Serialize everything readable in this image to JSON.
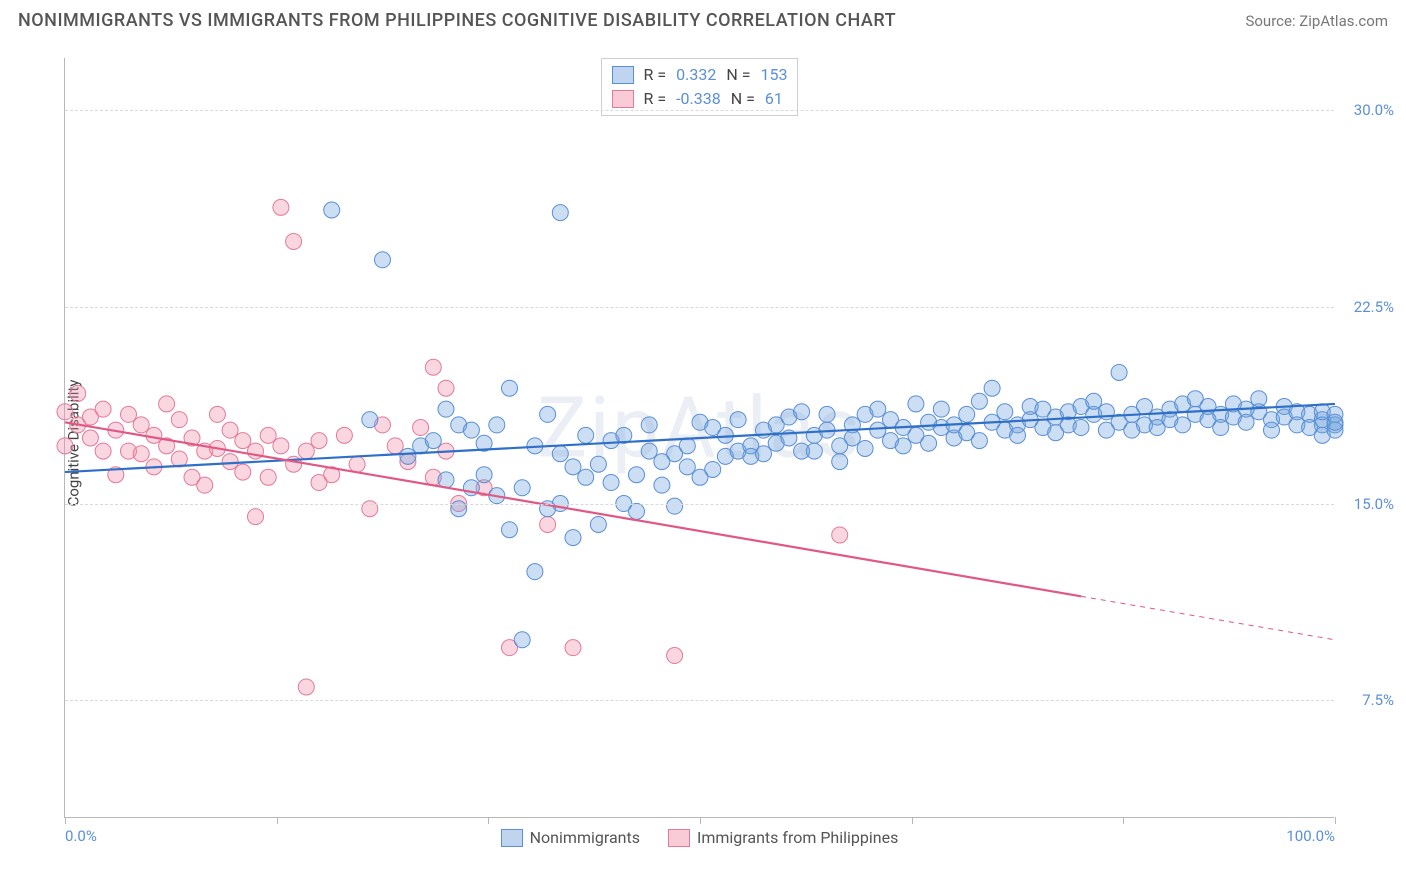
{
  "header": {
    "title": "NONIMMIGRANTS VS IMMIGRANTS FROM PHILIPPINES COGNITIVE DISABILITY CORRELATION CHART",
    "source": "Source: ZipAtlas.com"
  },
  "chart": {
    "type": "scatter",
    "watermark": "ZipAtlas",
    "ylabel": "Cognitive Disability",
    "xlim": [
      0,
      100
    ],
    "ylim": [
      3,
      32
    ],
    "background_color": "#ffffff",
    "grid_color": "#d9d9d9",
    "axis_color": "#b8b8b8",
    "ytick_labels": [
      "7.5%",
      "15.0%",
      "22.5%",
      "30.0%"
    ],
    "ytick_values": [
      7.5,
      15.0,
      22.5,
      30.0
    ],
    "xtick_values": [
      0,
      16.67,
      33.33,
      50,
      66.67,
      83.33,
      100
    ],
    "xaxis_labels": {
      "left": "0.0%",
      "right": "100.0%"
    },
    "tick_label_color": "#5a8fd6",
    "point_radius": 8,
    "point_stroke_width": 1,
    "series": [
      {
        "key": "nonimmigrants",
        "label": "Nonimmigrants",
        "fill": "rgba(110,160,220,0.35)",
        "stroke": "#5a8fd6",
        "line_color": "#2e6fc7",
        "line_width": 2.2,
        "r": 0.332,
        "n": 153,
        "trend": {
          "x1": 0,
          "y1": 16.2,
          "x2": 100,
          "y2": 18.8,
          "dashed_from_x": null
        },
        "points": [
          [
            21,
            26.2
          ],
          [
            24,
            18.2
          ],
          [
            25,
            24.3
          ],
          [
            27,
            16.8
          ],
          [
            28,
            17.2
          ],
          [
            29,
            17.4
          ],
          [
            30,
            15.9
          ],
          [
            30,
            18.6
          ],
          [
            31,
            18.0
          ],
          [
            31,
            14.8
          ],
          [
            32,
            17.8
          ],
          [
            32,
            15.6
          ],
          [
            33,
            16.1
          ],
          [
            33,
            17.3
          ],
          [
            34,
            15.3
          ],
          [
            34,
            18.0
          ],
          [
            35,
            19.4
          ],
          [
            35,
            14.0
          ],
          [
            36,
            15.6
          ],
          [
            36,
            9.8
          ],
          [
            37,
            12.4
          ],
          [
            37,
            17.2
          ],
          [
            38,
            14.8
          ],
          [
            38,
            18.4
          ],
          [
            39,
            26.1
          ],
          [
            39,
            16.9
          ],
          [
            39,
            15.0
          ],
          [
            40,
            13.7
          ],
          [
            40,
            16.4
          ],
          [
            41,
            17.6
          ],
          [
            41,
            16.0
          ],
          [
            42,
            14.2
          ],
          [
            42,
            16.5
          ],
          [
            43,
            15.8
          ],
          [
            43,
            17.4
          ],
          [
            44,
            15.0
          ],
          [
            44,
            17.6
          ],
          [
            45,
            16.1
          ],
          [
            45,
            14.7
          ],
          [
            46,
            18.0
          ],
          [
            46,
            17.0
          ],
          [
            47,
            15.7
          ],
          [
            47,
            16.6
          ],
          [
            48,
            16.9
          ],
          [
            48,
            14.9
          ],
          [
            49,
            16.4
          ],
          [
            49,
            17.2
          ],
          [
            50,
            18.1
          ],
          [
            50,
            16.0
          ],
          [
            51,
            17.9
          ],
          [
            51,
            16.3
          ],
          [
            52,
            16.8
          ],
          [
            52,
            17.6
          ],
          [
            53,
            17.0
          ],
          [
            53,
            18.2
          ],
          [
            54,
            17.2
          ],
          [
            54,
            16.8
          ],
          [
            55,
            17.8
          ],
          [
            55,
            16.9
          ],
          [
            56,
            17.3
          ],
          [
            56,
            18.0
          ],
          [
            57,
            17.5
          ],
          [
            57,
            18.3
          ],
          [
            58,
            17.0
          ],
          [
            58,
            18.5
          ],
          [
            59,
            17.6
          ],
          [
            59,
            17.0
          ],
          [
            60,
            17.8
          ],
          [
            60,
            18.4
          ],
          [
            61,
            16.6
          ],
          [
            61,
            17.2
          ],
          [
            62,
            18.0
          ],
          [
            62,
            17.5
          ],
          [
            63,
            17.1
          ],
          [
            63,
            18.4
          ],
          [
            64,
            17.8
          ],
          [
            64,
            18.6
          ],
          [
            65,
            17.4
          ],
          [
            65,
            18.2
          ],
          [
            66,
            17.9
          ],
          [
            66,
            17.2
          ],
          [
            67,
            18.8
          ],
          [
            67,
            17.6
          ],
          [
            68,
            17.3
          ],
          [
            68,
            18.1
          ],
          [
            69,
            17.9
          ],
          [
            69,
            18.6
          ],
          [
            70,
            17.5
          ],
          [
            70,
            18.0
          ],
          [
            71,
            18.4
          ],
          [
            71,
            17.7
          ],
          [
            72,
            18.9
          ],
          [
            72,
            17.4
          ],
          [
            73,
            19.4
          ],
          [
            73,
            18.1
          ],
          [
            74,
            17.8
          ],
          [
            74,
            18.5
          ],
          [
            75,
            18.0
          ],
          [
            75,
            17.6
          ],
          [
            76,
            18.7
          ],
          [
            76,
            18.2
          ],
          [
            77,
            17.9
          ],
          [
            77,
            18.6
          ],
          [
            78,
            18.3
          ],
          [
            78,
            17.7
          ],
          [
            79,
            18.5
          ],
          [
            79,
            18.0
          ],
          [
            80,
            18.7
          ],
          [
            80,
            17.9
          ],
          [
            81,
            18.4
          ],
          [
            81,
            18.9
          ],
          [
            82,
            17.8
          ],
          [
            82,
            18.5
          ],
          [
            83,
            20.0
          ],
          [
            83,
            18.1
          ],
          [
            84,
            17.8
          ],
          [
            84,
            18.4
          ],
          [
            85,
            18.7
          ],
          [
            85,
            18.0
          ],
          [
            86,
            18.3
          ],
          [
            86,
            17.9
          ],
          [
            87,
            18.6
          ],
          [
            87,
            18.2
          ],
          [
            88,
            18.8
          ],
          [
            88,
            18.0
          ],
          [
            89,
            18.4
          ],
          [
            89,
            19.0
          ],
          [
            90,
            18.2
          ],
          [
            90,
            18.7
          ],
          [
            91,
            18.4
          ],
          [
            91,
            17.9
          ],
          [
            92,
            18.8
          ],
          [
            92,
            18.3
          ],
          [
            93,
            18.6
          ],
          [
            93,
            18.1
          ],
          [
            94,
            18.5
          ],
          [
            94,
            19.0
          ],
          [
            95,
            18.2
          ],
          [
            95,
            17.8
          ],
          [
            96,
            18.7
          ],
          [
            96,
            18.3
          ],
          [
            97,
            18.5
          ],
          [
            97,
            18.0
          ],
          [
            98,
            18.4
          ],
          [
            98,
            17.9
          ],
          [
            99,
            18.2
          ],
          [
            99,
            18.0
          ],
          [
            99,
            17.6
          ],
          [
            99,
            18.5
          ],
          [
            100,
            18.0
          ],
          [
            100,
            17.8
          ],
          [
            100,
            18.4
          ],
          [
            100,
            18.1
          ]
        ]
      },
      {
        "key": "immigrants",
        "label": "Immigrants from Philippines",
        "fill": "rgba(240,140,165,0.35)",
        "stroke": "#e27a99",
        "line_color": "#e05884",
        "line_width": 2.2,
        "r": -0.338,
        "n": 61,
        "trend": {
          "x1": 0,
          "y1": 18.1,
          "x2": 100,
          "y2": 9.8,
          "dashed_from_x": 80
        },
        "points": [
          [
            0,
            18.5
          ],
          [
            0,
            17.2
          ],
          [
            1,
            19.2
          ],
          [
            1,
            18.0
          ],
          [
            2,
            18.3
          ],
          [
            2,
            17.5
          ],
          [
            3,
            17.0
          ],
          [
            3,
            18.6
          ],
          [
            4,
            16.1
          ],
          [
            4,
            17.8
          ],
          [
            5,
            18.4
          ],
          [
            5,
            17.0
          ],
          [
            6,
            18.0
          ],
          [
            6,
            16.9
          ],
          [
            7,
            17.6
          ],
          [
            7,
            16.4
          ],
          [
            8,
            18.8
          ],
          [
            8,
            17.2
          ],
          [
            9,
            16.7
          ],
          [
            9,
            18.2
          ],
          [
            10,
            17.5
          ],
          [
            10,
            16.0
          ],
          [
            11,
            17.0
          ],
          [
            11,
            15.7
          ],
          [
            12,
            18.4
          ],
          [
            12,
            17.1
          ],
          [
            13,
            16.6
          ],
          [
            13,
            17.8
          ],
          [
            14,
            16.2
          ],
          [
            14,
            17.4
          ],
          [
            15,
            17.0
          ],
          [
            15,
            14.5
          ],
          [
            16,
            17.6
          ],
          [
            16,
            16.0
          ],
          [
            17,
            17.2
          ],
          [
            17,
            26.3
          ],
          [
            18,
            16.5
          ],
          [
            18,
            25.0
          ],
          [
            19,
            17.0
          ],
          [
            19,
            8.0
          ],
          [
            20,
            15.8
          ],
          [
            20,
            17.4
          ],
          [
            21,
            16.1
          ],
          [
            22,
            17.6
          ],
          [
            23,
            16.5
          ],
          [
            24,
            14.8
          ],
          [
            25,
            18.0
          ],
          [
            26,
            17.2
          ],
          [
            27,
            16.6
          ],
          [
            28,
            17.9
          ],
          [
            29,
            16.0
          ],
          [
            29,
            20.2
          ],
          [
            30,
            17.0
          ],
          [
            30,
            19.4
          ],
          [
            31,
            15.0
          ],
          [
            33,
            15.6
          ],
          [
            35,
            9.5
          ],
          [
            38,
            14.2
          ],
          [
            40,
            9.5
          ],
          [
            48,
            9.2
          ],
          [
            61,
            13.8
          ]
        ]
      }
    ],
    "legend": {
      "swatch_border_nonimmigrants": "#5a8fd6",
      "swatch_fill_nonimmigrants": "rgba(110,160,220,0.45)",
      "swatch_border_immigrants": "#e27a99",
      "swatch_fill_immigrants": "rgba(240,140,165,0.45)"
    },
    "stats_box": {
      "rows": [
        {
          "swatch": "nonimmigrants",
          "r_label": "R =",
          "r": "0.332",
          "n_label": "N =",
          "n": "153"
        },
        {
          "swatch": "immigrants",
          "r_label": "R =",
          "r": "-0.338",
          "n_label": "N =",
          "n": "61"
        }
      ]
    }
  }
}
